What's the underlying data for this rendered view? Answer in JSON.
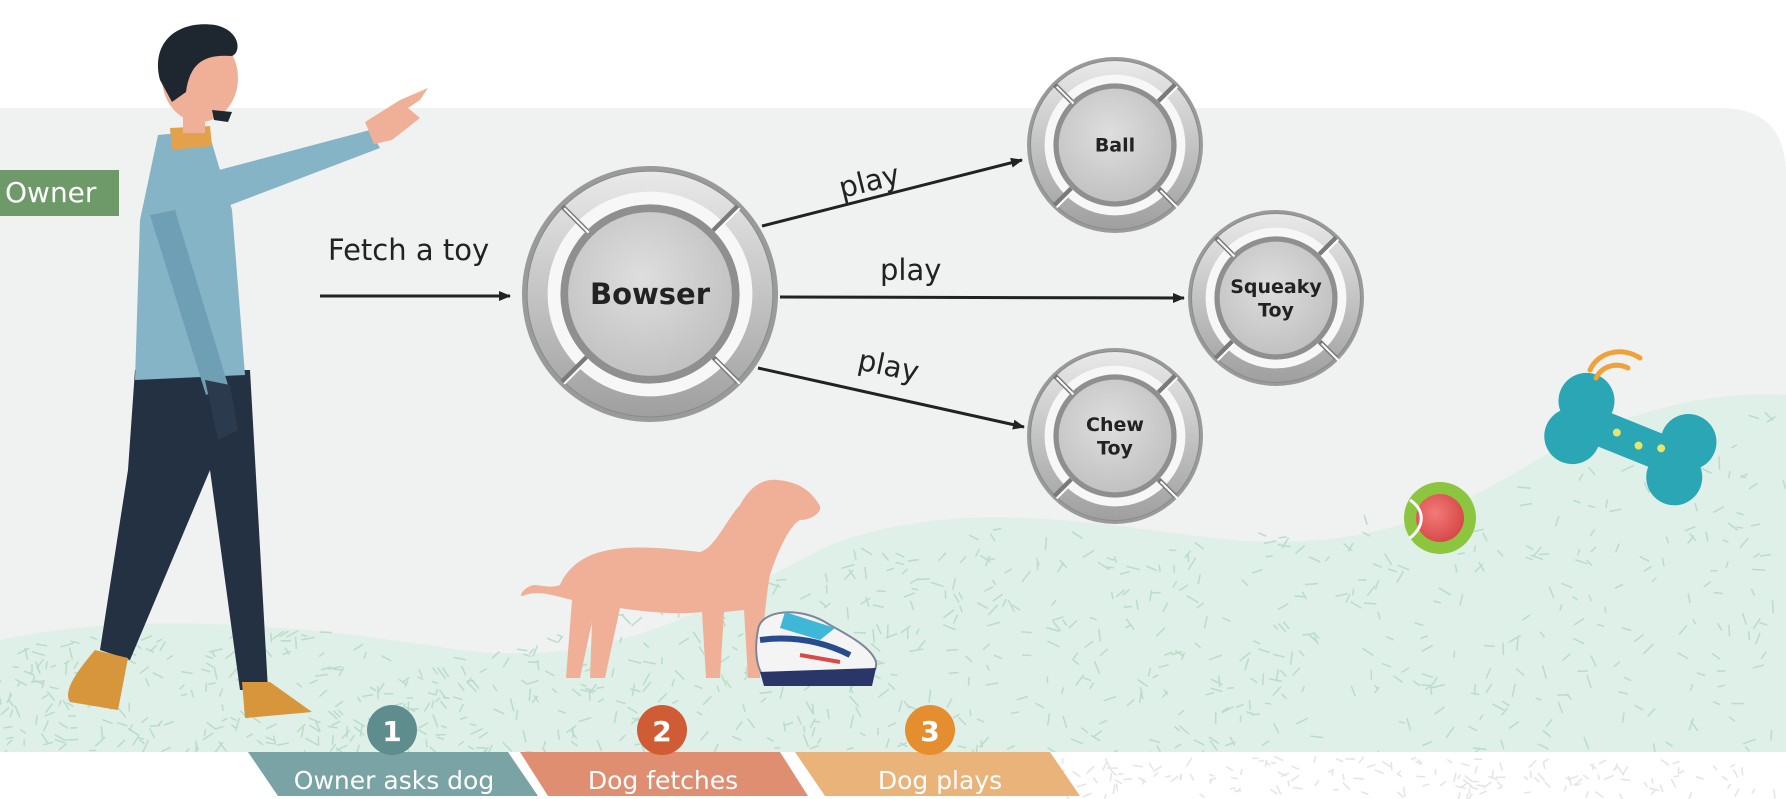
{
  "owner_tag": "Owner",
  "nodes": {
    "bowser": [
      "Bowser"
    ],
    "ball": [
      "Ball"
    ],
    "squeaky": [
      "Squeaky",
      "Toy"
    ],
    "chew": [
      "Chew",
      "Toy"
    ]
  },
  "edges": {
    "fetch": "Fetch a toy",
    "play_ball": "play",
    "play_squeaky": "play",
    "play_chew": "play"
  },
  "steps": [
    {
      "number": "1",
      "label": "Owner asks dog",
      "color": "#79a3a4",
      "badge_color": "#5f8c8d"
    },
    {
      "number": "2",
      "label": "Dog fetches",
      "color": "#df8e71",
      "badge_color": "#cf5c34"
    },
    {
      "number": "3",
      "label": "Dog plays",
      "color": "#eab37a",
      "badge_color": "#e58e2f"
    }
  ],
  "colors": {
    "panel_bg": "#f0f1f1",
    "ground": "#dff0e8",
    "owner_tag": "#6e9a6a",
    "dog": "#f0b097",
    "bone": "#2aa6b4"
  }
}
